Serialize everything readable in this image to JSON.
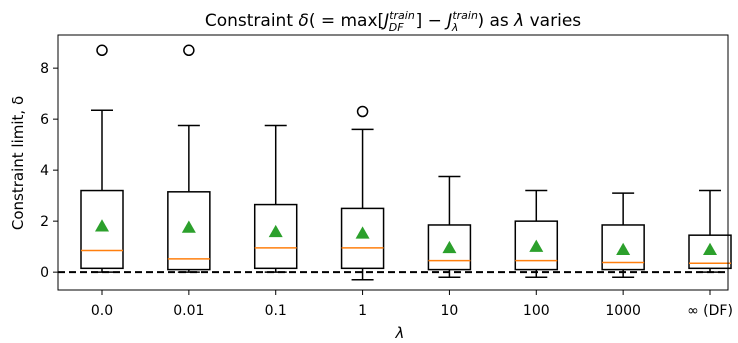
{
  "chart_data": {
    "type": "box",
    "title_parts": {
      "prefix": "Constraint ",
      "delta": "δ",
      "open": "( = max[",
      "j1": "J",
      "j1_sup": "train",
      "j1_sub": "DF",
      "mid": "] − ",
      "j2": "J",
      "j2_sup": "train",
      "j2_sub": "λ",
      "close": ") as ",
      "lambda": "λ",
      "suffix": " varies"
    },
    "xlabel": "λ",
    "ylabel": "Constraint limit, δ",
    "ylim": [
      -0.7,
      9.3
    ],
    "yticks": [
      0,
      2,
      4,
      6,
      8
    ],
    "categories": [
      "0.0",
      "0.01",
      "0.1",
      "1",
      "10",
      "100",
      "1000",
      "∞ (DF)"
    ],
    "boxes": [
      {
        "whisker_low": 0.0,
        "q1": 0.15,
        "median": 0.85,
        "q3": 3.2,
        "whisker_high": 6.35,
        "mean": 1.8,
        "outliers": [
          8.7
        ]
      },
      {
        "whisker_low": 0.0,
        "q1": 0.1,
        "median": 0.52,
        "q3": 3.15,
        "whisker_high": 5.75,
        "mean": 1.75,
        "outliers": [
          8.7
        ]
      },
      {
        "whisker_low": 0.0,
        "q1": 0.15,
        "median": 0.95,
        "q3": 2.65,
        "whisker_high": 5.75,
        "mean": 1.58,
        "outliers": []
      },
      {
        "whisker_low": -0.3,
        "q1": 0.15,
        "median": 0.95,
        "q3": 2.5,
        "whisker_high": 5.6,
        "mean": 1.52,
        "outliers": [
          6.3
        ]
      },
      {
        "whisker_low": -0.2,
        "q1": 0.1,
        "median": 0.45,
        "q3": 1.85,
        "whisker_high": 3.75,
        "mean": 0.95,
        "outliers": []
      },
      {
        "whisker_low": -0.2,
        "q1": 0.1,
        "median": 0.45,
        "q3": 2.0,
        "whisker_high": 3.2,
        "mean": 1.0,
        "outliers": []
      },
      {
        "whisker_low": -0.2,
        "q1": 0.1,
        "median": 0.38,
        "q3": 1.85,
        "whisker_high": 3.1,
        "mean": 0.88,
        "outliers": []
      },
      {
        "whisker_low": 0.0,
        "q1": 0.15,
        "median": 0.35,
        "q3": 1.45,
        "whisker_high": 3.2,
        "mean": 0.88,
        "outliers": []
      }
    ],
    "reference_line": {
      "y": 0,
      "style": "dashed"
    },
    "colors": {
      "median": "#ff7f0e",
      "mean": "#2ca02c",
      "box": "#000000"
    }
  }
}
